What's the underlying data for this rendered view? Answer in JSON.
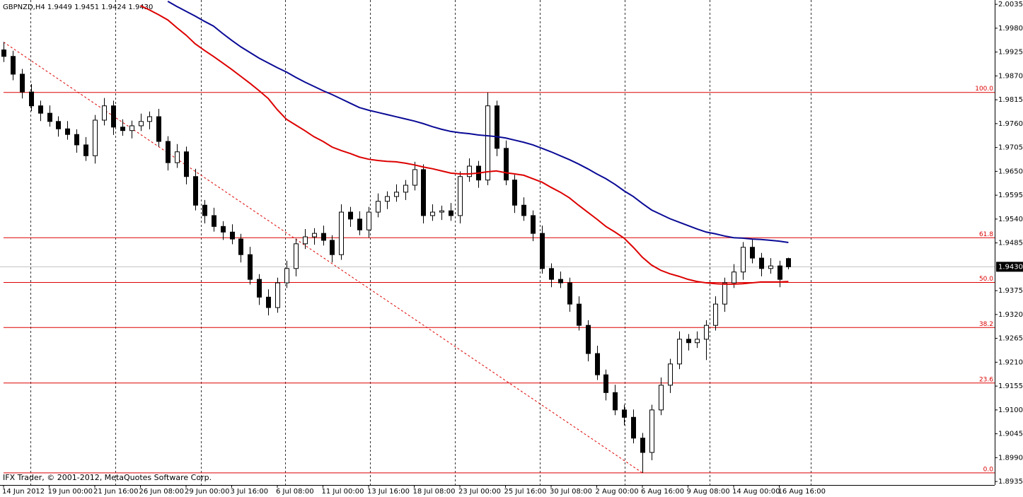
{
  "chart_data": {
    "type": "candlestick",
    "title": "GBPNZD,H4  1.9449 1.9451 1.9424 1.9430",
    "annotation": "IFX Trader, © 2001-2012, MetaQuotes Software Corp.",
    "categories": [
      "14 Jun 2012",
      null,
      null,
      null,
      null,
      "19 Jun 00:00",
      null,
      null,
      null,
      null,
      "21 Jun 16:00",
      null,
      null,
      null,
      null,
      "26 Jun 08:00",
      null,
      null,
      null,
      null,
      "29 Jun 00:00",
      null,
      null,
      null,
      null,
      "3 Jul 16:00",
      null,
      null,
      null,
      null,
      "6 Jul 08:00",
      null,
      null,
      null,
      null,
      "11 Jul 00:00",
      null,
      null,
      null,
      null,
      "13 Jul 16:00",
      null,
      null,
      null,
      null,
      "18 Jul 08:00",
      null,
      null,
      null,
      null,
      "23 Jul 00:00",
      null,
      null,
      null,
      null,
      "25 Jul 16:00",
      null,
      null,
      null,
      null,
      "30 Jul 08:00",
      null,
      null,
      null,
      null,
      "2 Aug 00:00",
      null,
      null,
      null,
      null,
      "6 Aug 16:00",
      null,
      null,
      null,
      null,
      "9 Aug 08:00",
      null,
      null,
      null,
      null,
      "14 Aug 00:00",
      null,
      null,
      null,
      null,
      "16 Aug 16:00",
      null
    ],
    "open": [
      1.993,
      1.9915,
      1.9874,
      1.9833,
      1.9801,
      1.9784,
      1.9765,
      1.9748,
      1.9735,
      1.9711,
      1.9686,
      1.9768,
      1.9801,
      1.9752,
      1.9744,
      1.9755,
      1.9765,
      1.9776,
      1.9719,
      1.967,
      1.9695,
      1.9638,
      1.9572,
      1.9548,
      1.9523,
      1.951,
      1.9494,
      1.9458,
      1.9401,
      1.936,
      1.9336,
      1.9393,
      1.9426,
      1.9483,
      1.9499,
      1.9507,
      1.9491,
      1.9458,
      1.9556,
      1.954,
      1.9515,
      1.9556,
      1.9581,
      1.9592,
      1.9602,
      1.9618,
      1.9654,
      1.9548,
      1.9556,
      1.9559,
      1.9548,
      1.9638,
      1.9662,
      1.963,
      1.9801,
      1.9703,
      1.963,
      1.9572,
      1.9548,
      1.9507,
      1.9426,
      1.9401,
      1.9393,
      1.9344,
      1.9295,
      1.923,
      1.9181,
      1.914,
      1.91,
      1.9083,
      1.9035,
      1.9002,
      1.91,
      1.9157,
      1.9206,
      1.9263,
      1.9255,
      1.9263,
      1.9295,
      1.9344,
      1.9393,
      1.9418,
      1.9475,
      1.945,
      1.9426,
      1.9432,
      1.9449
    ],
    "high": [
      1.9948,
      1.9928,
      1.9886,
      1.9851,
      1.9813,
      1.9802,
      1.9777,
      1.9766,
      1.9747,
      1.9729,
      1.978,
      1.9819,
      1.9813,
      1.977,
      1.9767,
      1.9783,
      1.9788,
      1.9794,
      1.9731,
      1.9713,
      1.9707,
      1.9656,
      1.9584,
      1.9566,
      1.9535,
      1.9528,
      1.9506,
      1.9476,
      1.9413,
      1.9378,
      1.9405,
      1.9444,
      1.9495,
      1.9517,
      1.9519,
      1.9525,
      1.9503,
      1.9574,
      1.9568,
      1.9558,
      1.9568,
      1.9599,
      1.9604,
      1.962,
      1.963,
      1.9672,
      1.9666,
      1.9574,
      1.9571,
      1.9577,
      1.965,
      1.968,
      1.9674,
      1.9832,
      1.9813,
      1.9721,
      1.9642,
      1.959,
      1.956,
      1.9525,
      1.9438,
      1.9419,
      1.9405,
      1.9362,
      1.9307,
      1.9248,
      1.9193,
      1.9158,
      1.9112,
      1.9101,
      1.9047,
      1.9112,
      1.9175,
      1.9218,
      1.9281,
      1.9275,
      1.9281,
      1.9307,
      1.9362,
      1.9405,
      1.9436,
      1.9487,
      1.9493,
      1.9462,
      1.945,
      1.9444,
      1.9451
    ],
    "low": [
      1.9902,
      1.986,
      1.9818,
      1.9789,
      1.9766,
      1.9753,
      1.973,
      1.9723,
      1.9693,
      1.9674,
      1.9668,
      1.9756,
      1.9734,
      1.9732,
      1.9726,
      1.9743,
      1.9747,
      1.9707,
      1.9652,
      1.9658,
      1.962,
      1.956,
      1.953,
      1.9511,
      1.9492,
      1.9482,
      1.944,
      1.9389,
      1.9342,
      1.9318,
      1.9324,
      1.9381,
      1.9408,
      1.9471,
      1.9481,
      1.9479,
      1.944,
      1.9446,
      1.9522,
      1.9503,
      1.9497,
      1.9544,
      1.9563,
      1.958,
      1.9584,
      1.9606,
      1.953,
      1.9536,
      1.9538,
      1.9536,
      1.953,
      1.9626,
      1.9612,
      1.9618,
      1.9685,
      1.9618,
      1.9554,
      1.9536,
      1.9489,
      1.9414,
      1.9383,
      1.9381,
      1.9326,
      1.9283,
      1.9212,
      1.9169,
      1.9122,
      1.9088,
      1.9065,
      1.9023,
      1.8955,
      1.8984,
      1.9088,
      1.9139,
      1.9194,
      1.9237,
      1.9243,
      1.9215,
      1.9283,
      1.9326,
      1.9381,
      1.94,
      1.9438,
      1.9408,
      1.9414,
      1.9383,
      1.9424
    ],
    "close": [
      1.9915,
      1.9874,
      1.9833,
      1.9801,
      1.9784,
      1.9765,
      1.9748,
      1.9735,
      1.9711,
      1.9686,
      1.9768,
      1.9801,
      1.9752,
      1.9744,
      1.9755,
      1.9765,
      1.9776,
      1.9719,
      1.967,
      1.9695,
      1.9638,
      1.9572,
      1.9548,
      1.9523,
      1.951,
      1.9494,
      1.9458,
      1.9401,
      1.936,
      1.9336,
      1.9393,
      1.9426,
      1.9483,
      1.9499,
      1.9507,
      1.9491,
      1.9458,
      1.9556,
      1.954,
      1.9515,
      1.9556,
      1.9581,
      1.9592,
      1.9602,
      1.9618,
      1.9654,
      1.9548,
      1.9556,
      1.9559,
      1.9548,
      1.9638,
      1.9662,
      1.963,
      1.9801,
      1.9703,
      1.963,
      1.9572,
      1.9548,
      1.9507,
      1.9426,
      1.9401,
      1.9393,
      1.9344,
      1.9295,
      1.923,
      1.9181,
      1.914,
      1.91,
      1.9083,
      1.9035,
      1.9002,
      1.91,
      1.9157,
      1.9206,
      1.9263,
      1.9255,
      1.9263,
      1.9295,
      1.9344,
      1.9393,
      1.9418,
      1.9475,
      1.945,
      1.9426,
      1.9432,
      1.9401,
      1.943
    ],
    "lines": [
      {
        "color": "#dd0000",
        "values": [
          null,
          null,
          null,
          null,
          null,
          null,
          null,
          null,
          null,
          null,
          null,
          null,
          null,
          null,
          null,
          2.0032,
          2.0022,
          2.0011,
          1.9999,
          1.9981,
          1.9964,
          1.9944,
          1.9929,
          1.9915,
          1.99,
          1.9885,
          1.9869,
          1.9853,
          1.9836,
          1.9818,
          1.9792,
          1.977,
          1.9757,
          1.9744,
          1.973,
          1.9719,
          1.9706,
          1.9698,
          1.9691,
          1.9683,
          1.9678,
          1.9675,
          1.9673,
          1.9672,
          1.9669,
          1.9665,
          1.966,
          1.9656,
          1.9651,
          1.9646,
          1.9644,
          1.9644,
          1.9646,
          1.9649,
          1.9651,
          1.9647,
          1.9644,
          1.9641,
          1.9633,
          1.9625,
          1.9613,
          1.9602,
          1.9589,
          1.9572,
          1.9556,
          1.954,
          1.9523,
          1.951,
          1.9496,
          1.9475,
          1.9452,
          1.9434,
          1.9422,
          1.9414,
          1.9408,
          1.9401,
          1.9396,
          1.9393,
          1.9391,
          1.939,
          1.939,
          1.9391,
          1.9393,
          1.9395,
          1.9395,
          1.9395,
          1.9396
        ]
      },
      {
        "color": "#0a0a96",
        "values": [
          null,
          null,
          null,
          null,
          null,
          null,
          null,
          null,
          null,
          null,
          null,
          null,
          null,
          null,
          null,
          null,
          null,
          null,
          2.0042,
          2.003,
          2.0019,
          2.0008,
          1.9996,
          1.9985,
          1.9968,
          1.9952,
          1.9937,
          1.9924,
          1.9911,
          1.99,
          1.9889,
          1.9879,
          1.9867,
          1.9856,
          1.9846,
          1.9836,
          1.9827,
          1.9817,
          1.9807,
          1.9797,
          1.9791,
          1.9786,
          1.9781,
          1.9776,
          1.9771,
          1.9766,
          1.976,
          1.9753,
          1.9747,
          1.9742,
          1.9739,
          1.9737,
          1.9734,
          1.9732,
          1.973,
          1.9727,
          1.9722,
          1.9717,
          1.9711,
          1.9703,
          1.9695,
          1.9686,
          1.9677,
          1.9667,
          1.9656,
          1.9644,
          1.9633,
          1.962,
          1.9605,
          1.9592,
          1.9576,
          1.9561,
          1.9551,
          1.9541,
          1.9533,
          1.9525,
          1.9517,
          1.951,
          1.9506,
          1.9501,
          1.9497,
          1.9496,
          1.9494,
          1.9493,
          1.9491,
          1.9489,
          1.9486
        ]
      }
    ],
    "fibonacci": {
      "color": "#dd0000",
      "levels": [
        {
          "value": 1.9832,
          "label": "100.0"
        },
        {
          "value": 1.9497,
          "label": "61.8"
        },
        {
          "value": 1.9394,
          "label": "50.0"
        },
        {
          "value": 1.929,
          "label": "38.2"
        },
        {
          "value": 1.9162,
          "label": "23.6"
        },
        {
          "value": 1.8955,
          "label": "0.0"
        }
      ]
    },
    "last_price": {
      "value": 1.943,
      "label": "1.9430"
    },
    "ylim": [
      1.8927,
      2.0045
    ],
    "yticks": [
      {
        "value": 2.0035,
        "label": "2.0035"
      },
      {
        "value": 1.998,
        "label": "1.9980"
      },
      {
        "value": 1.9925,
        "label": "1.9925"
      },
      {
        "value": 1.987,
        "label": "1.9870"
      },
      {
        "value": 1.9815,
        "label": "1.9815"
      },
      {
        "value": 1.976,
        "label": "1.9760"
      },
      {
        "value": 1.9705,
        "label": "1.9705"
      },
      {
        "value": 1.965,
        "label": "1.9650"
      },
      {
        "value": 1.9595,
        "label": "1.9595"
      },
      {
        "value": 1.954,
        "label": "1.9540"
      },
      {
        "value": 1.9485,
        "label": "1.9485"
      },
      {
        "value": 1.9375,
        "label": "1.9375"
      },
      {
        "value": 1.932,
        "label": "1.9320"
      },
      {
        "value": 1.9265,
        "label": "1.9265"
      },
      {
        "value": 1.921,
        "label": "1.9210"
      },
      {
        "value": 1.9155,
        "label": "1.9155"
      },
      {
        "value": 1.91,
        "label": "1.9100"
      },
      {
        "value": 1.9045,
        "label": "1.9045"
      },
      {
        "value": 1.899,
        "label": "1.8990"
      },
      {
        "value": 1.8935,
        "label": "1.8935"
      }
    ]
  }
}
